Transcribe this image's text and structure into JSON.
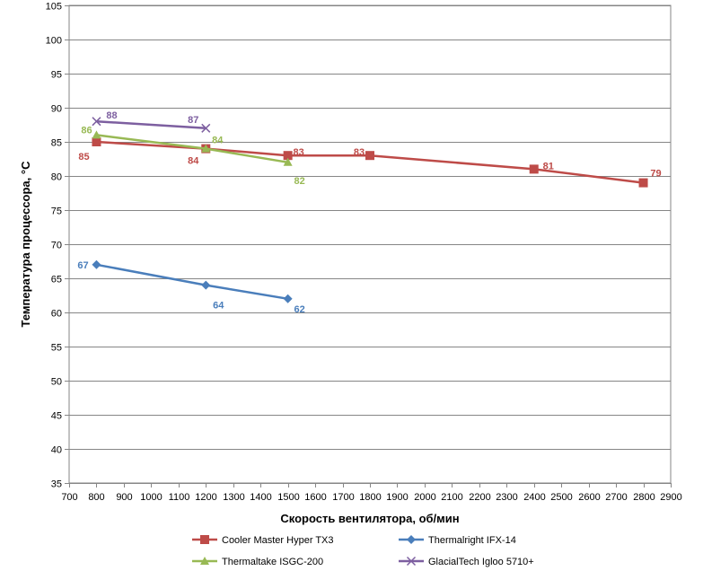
{
  "chart_data": {
    "type": "line",
    "xlabel": "Скорость вентилятора, об/мин",
    "ylabel": "Температура процессора,  °C",
    "xlim": [
      700,
      2900
    ],
    "ylim": [
      35,
      105
    ],
    "x_ticks": [
      700,
      800,
      900,
      1000,
      1100,
      1200,
      1300,
      1400,
      1500,
      1600,
      1700,
      1800,
      1900,
      2000,
      2100,
      2200,
      2300,
      2400,
      2500,
      2600,
      2700,
      2800,
      2900
    ],
    "y_ticks": [
      35,
      40,
      45,
      50,
      55,
      60,
      65,
      70,
      75,
      80,
      85,
      90,
      95,
      100,
      105
    ],
    "grid": "horizontal",
    "legend_position": "bottom",
    "series": [
      {
        "name": "Cooler Master Hyper TX3",
        "marker": "square",
        "color": "#BE4B48",
        "points": [
          [
            800,
            85
          ],
          [
            1200,
            84
          ],
          [
            1500,
            83
          ],
          [
            1800,
            83
          ],
          [
            2400,
            81
          ],
          [
            2800,
            79
          ]
        ],
        "labels": [
          "85",
          "84",
          "83",
          "83",
          "81",
          "79"
        ]
      },
      {
        "name": "Thermalright IFX-14",
        "marker": "diamond",
        "color": "#4A7EBB",
        "points": [
          [
            800,
            67
          ],
          [
            1200,
            64
          ],
          [
            1500,
            62
          ]
        ],
        "labels": [
          "67",
          "64",
          "62"
        ]
      },
      {
        "name": "Thermaltake ISGC-200",
        "marker": "triangle",
        "color": "#98B954",
        "points": [
          [
            800,
            86
          ],
          [
            1200,
            84
          ],
          [
            1500,
            82
          ]
        ],
        "labels": [
          "86",
          "84",
          "82"
        ]
      },
      {
        "name": "GlacialTech Igloo 5710+",
        "marker": "x",
        "color": "#7D5FA0",
        "points": [
          [
            800,
            88
          ],
          [
            1200,
            87
          ]
        ],
        "labels": [
          "88",
          "87"
        ]
      }
    ]
  }
}
